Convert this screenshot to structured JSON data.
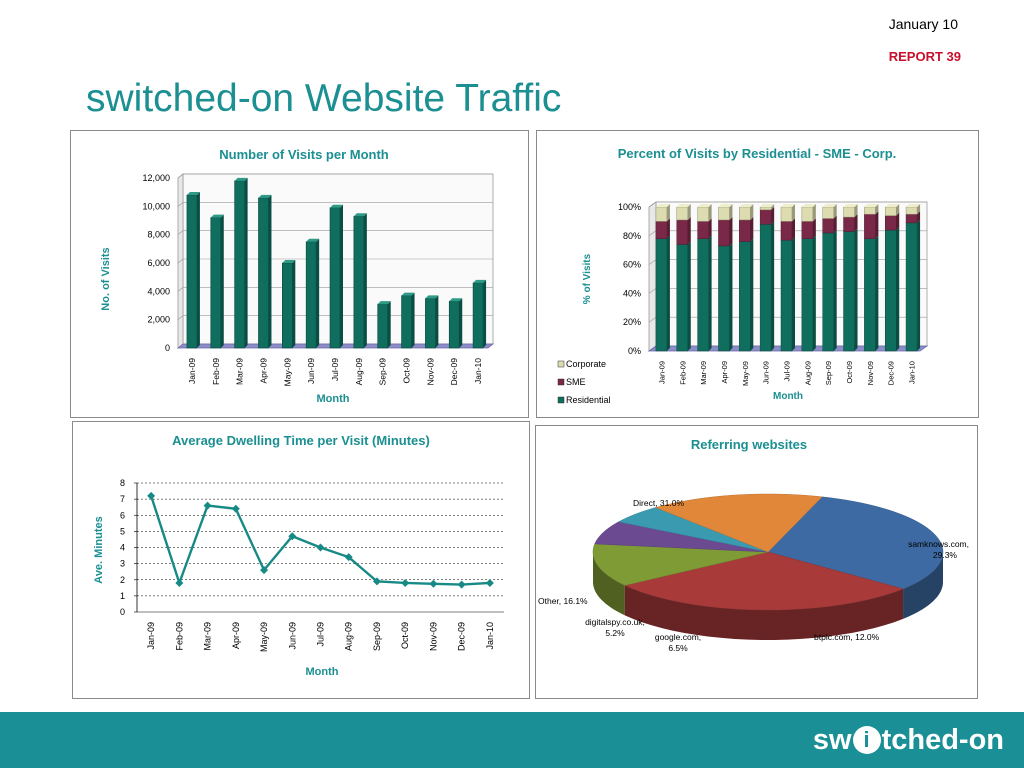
{
  "header": {
    "date": "January 10",
    "report": "REPORT 39",
    "title": "switched-on Website Traffic"
  },
  "colors": {
    "accent": "#1b8f91",
    "report_red": "#c8102e",
    "footer": "#1a8f95",
    "residential": "#0f6e5e",
    "sme": "#7a2848",
    "corporate": "#dcdcb0"
  },
  "footer": {
    "logo_left": "sw",
    "logo_i": "i",
    "logo_right": "tched-on"
  },
  "chart_data": [
    {
      "type": "bar",
      "title": "Number of Visits per Month",
      "xlabel": "Month",
      "ylabel": "No. of Visits",
      "ylim": [
        0,
        12000
      ],
      "yticks": [
        0,
        2000,
        4000,
        6000,
        8000,
        10000,
        12000
      ],
      "ytick_labels": [
        "0",
        "2,000",
        "4,000",
        "6,000",
        "8,000",
        "10,000",
        "12,000"
      ],
      "categories": [
        "Jan-09",
        "Feb-09",
        "Mar-09",
        "Apr-09",
        "May-09",
        "Jun-09",
        "Jul-09",
        "Aug-09",
        "Sep-09",
        "Oct-09",
        "Nov-09",
        "Dec-09",
        "Jan-10"
      ],
      "values": [
        10800,
        9200,
        11800,
        10600,
        6000,
        7500,
        9900,
        9300,
        3100,
        3700,
        3500,
        3300,
        4600
      ],
      "grid": true
    },
    {
      "type": "bar",
      "stacked": true,
      "title": "Percent of Visits by Residential - SME - Corp.",
      "xlabel": "Month",
      "ylabel": "% of Visits",
      "ylim": [
        0,
        100
      ],
      "yticks": [
        0,
        20,
        40,
        60,
        80,
        100
      ],
      "ytick_labels": [
        "0%",
        "20%",
        "40%",
        "60%",
        "80%",
        "100%"
      ],
      "categories": [
        "Jan-09",
        "Feb-09",
        "Mar-09",
        "Apr-09",
        "May-09",
        "Jun-09",
        "Jul-09",
        "Aug-09",
        "Sep-09",
        "Oct-09",
        "Nov-09",
        "Dec-09",
        "Jan-10"
      ],
      "series": [
        {
          "name": "Residential",
          "values": [
            78,
            74,
            78,
            73,
            76,
            88,
            77,
            78,
            82,
            83,
            78,
            84,
            89
          ]
        },
        {
          "name": "SME",
          "values": [
            12,
            17,
            12,
            18,
            15,
            10,
            13,
            12,
            10,
            10,
            17,
            10,
            6
          ]
        },
        {
          "name": "Corporate",
          "values": [
            10,
            9,
            10,
            9,
            9,
            2,
            10,
            10,
            8,
            7,
            5,
            6,
            5
          ]
        }
      ],
      "legend_order": [
        "Corporate",
        "SME",
        "Residential"
      ],
      "legend": "bottom-left",
      "grid": true
    },
    {
      "type": "line",
      "title": "Average Dwelling Time per Visit (Minutes)",
      "xlabel": "Month",
      "ylabel": "Ave. Minutes",
      "ylim": [
        0,
        8
      ],
      "yticks": [
        0,
        1,
        2,
        3,
        4,
        5,
        6,
        7,
        8
      ],
      "ytick_labels": [
        "0",
        "1",
        "2",
        "3",
        "4",
        "5",
        "6",
        "7",
        "8"
      ],
      "categories": [
        "Jan-09",
        "Feb-09",
        "Mar-09",
        "Apr-09",
        "May-09",
        "Jun-09",
        "Jul-09",
        "Aug-09",
        "Sep-09",
        "Oct-09",
        "Nov-09",
        "Dec-09",
        "Jan-10"
      ],
      "values": [
        7.2,
        1.8,
        6.6,
        6.4,
        2.6,
        4.7,
        4.0,
        3.4,
        1.9,
        1.8,
        1.75,
        1.7,
        1.8
      ],
      "grid": true
    },
    {
      "type": "pie",
      "title": "Referring websites",
      "slices": [
        {
          "name": "Direct",
          "value": 31.0,
          "label": "Direct, 31.0%"
        },
        {
          "name": "samknows.com",
          "value": 29.3,
          "label_lines": [
            "samknows.com,",
            "29.3%"
          ]
        },
        {
          "name": "btplc.com",
          "value": 12.0,
          "label": "btplc.com, 12.0%"
        },
        {
          "name": "google.com",
          "value": 6.5,
          "label_lines": [
            "google.com,",
            "6.5%"
          ]
        },
        {
          "name": "digitalspy.co.uk",
          "value": 5.2,
          "label_lines": [
            "digitalspy.co.uk,",
            "5.2%"
          ]
        },
        {
          "name": "Other",
          "value": 16.1,
          "label": "Other, 16.1%"
        }
      ],
      "slice_colors": [
        "#3e6aa3",
        "#a83a3a",
        "#7f9b35",
        "#6b4a92",
        "#3a9bb0",
        "#e0873a"
      ]
    }
  ]
}
